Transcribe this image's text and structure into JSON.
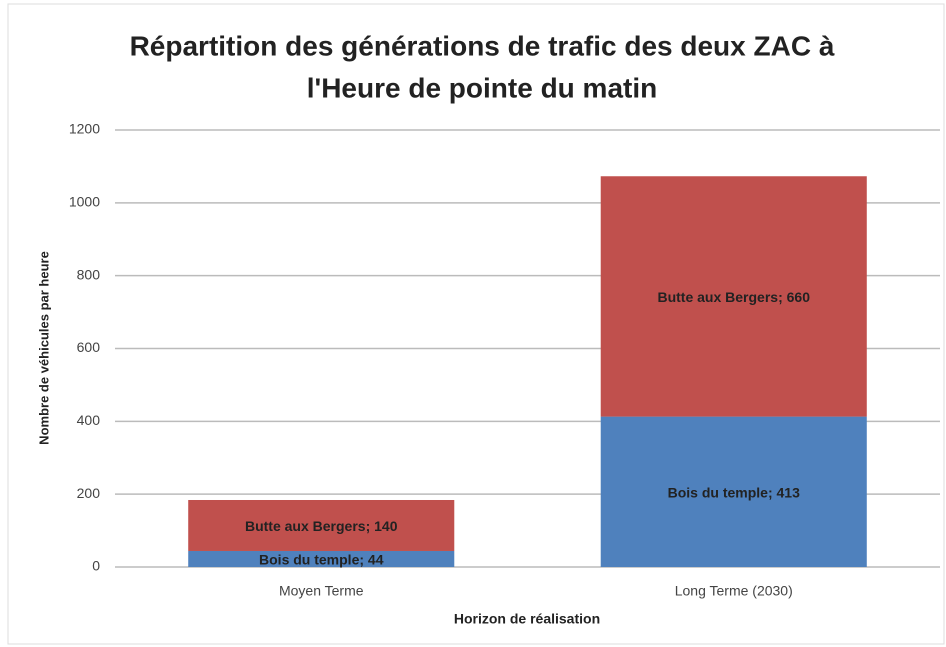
{
  "chart_data": {
    "type": "stacked_bar",
    "title": [
      "Répartition des générations de trafic  des deux ZAC à",
      "l'Heure de pointe du matin"
    ],
    "x_label": "Horizon de réalisation",
    "y_label": "Nombre de véhicules par heure",
    "categories": [
      "Moyen Terme",
      "Long Terme (2030)"
    ],
    "series": [
      {
        "name": "Bois du temple",
        "color": "#4f81bd",
        "values": [
          44,
          413
        ],
        "value_labels": [
          "Bois du temple; 44",
          "Bois du temple; 413"
        ]
      },
      {
        "name": "Butte aux Bergers",
        "color": "#c0504d",
        "values": [
          140,
          660
        ],
        "value_labels": [
          "Butte aux Bergers; 140",
          "Butte aux Bergers; 660"
        ]
      }
    ],
    "ylim": [
      0,
      1200
    ],
    "yticks": [
      0,
      200,
      400,
      600,
      800,
      1000,
      1200
    ],
    "grid": true
  }
}
